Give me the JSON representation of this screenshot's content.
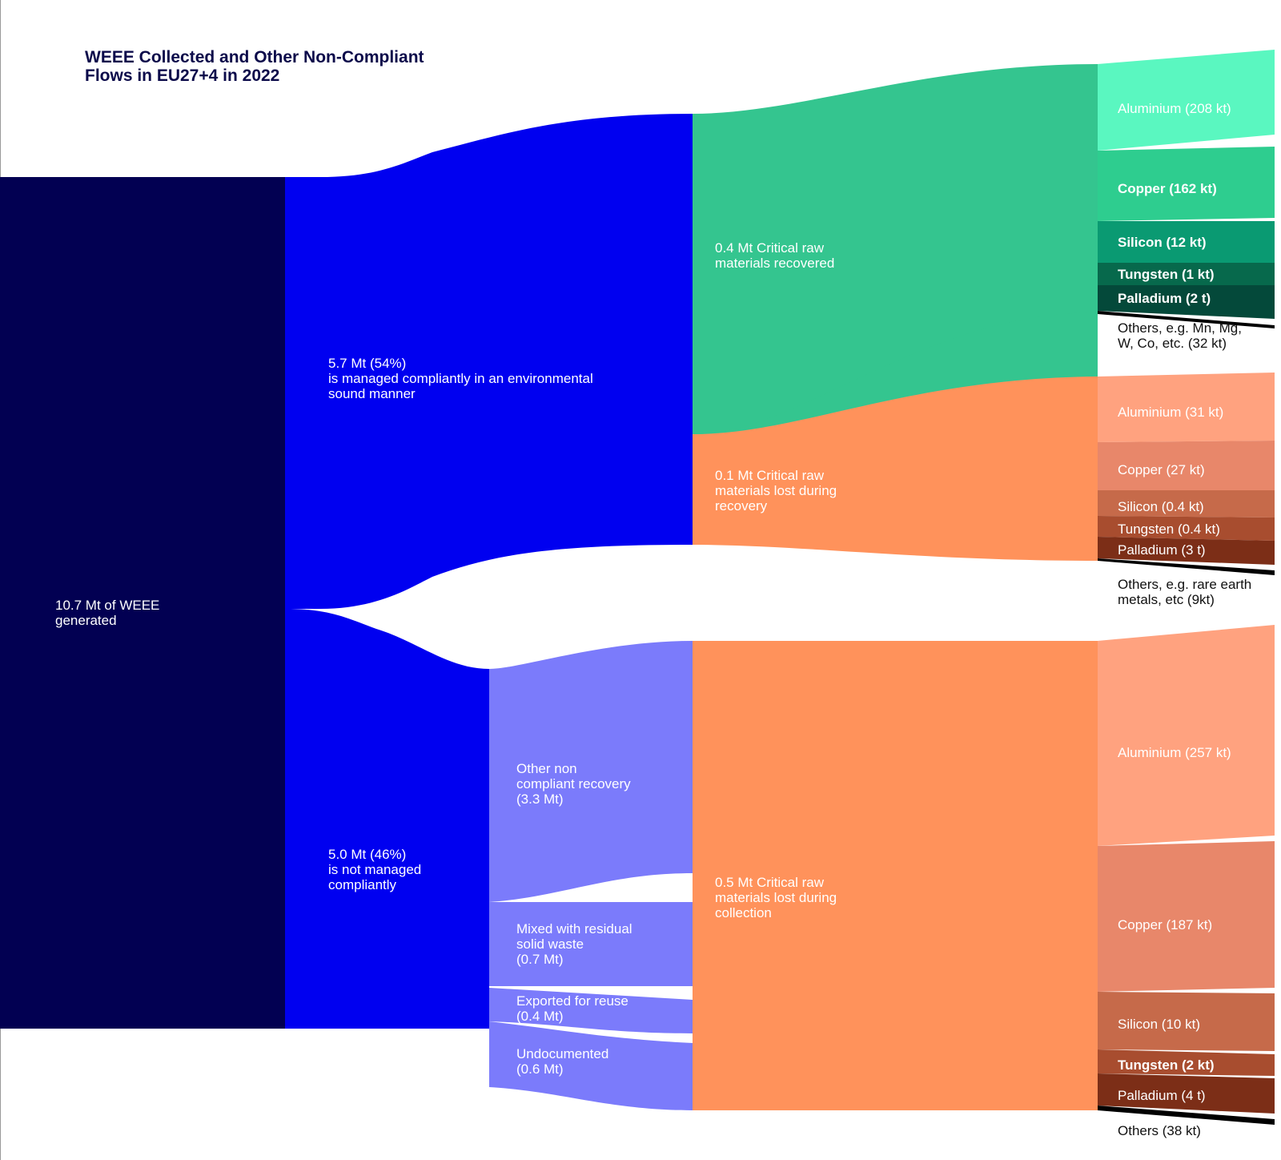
{
  "title": {
    "line1": "WEEE Collected and Other Non-Compliant",
    "line2": "Flows in EU27+4 in 2022"
  },
  "colors": {
    "generated": "#020052",
    "flow_blue": "#0000f0",
    "non_compliant_branch": "#7b7bfb",
    "recovered": "#34c58f",
    "lost": "#ff925b"
  },
  "nodes": {
    "generated": {
      "line1": "10.7 Mt of WEEE",
      "line2": "generated"
    },
    "compliant": {
      "line1": "5.7 Mt (54%)",
      "line2": "is managed compliantly in an environmental",
      "line3": "sound manner"
    },
    "non_compliant": {
      "line1": "5.0 Mt (46%)",
      "line2": "is not managed",
      "line3": "compliantly"
    },
    "other_recovery": {
      "line1": "Other non",
      "line2": "compliant recovery",
      "line3": "(3.3 Mt)"
    },
    "mixed_residual": {
      "line1": "Mixed with residual",
      "line2": "solid waste",
      "line3": "(0.7 Mt)"
    },
    "exported_reuse": {
      "line1": "Exported for reuse",
      "line2": "(0.4 Mt)"
    },
    "undocumented": {
      "line1": "Undocumented",
      "line2": "(0.6 Mt)"
    },
    "crm_recovered": {
      "line1": "0.4 Mt Critical raw",
      "line2": "materials recovered"
    },
    "crm_lost_recovery": {
      "line1": "0.1 Mt Critical raw",
      "line2": "materials lost during",
      "line3": "recovery"
    },
    "crm_lost_collection": {
      "line1": "0.5 Mt Critical raw",
      "line2": "materials lost during",
      "line3": "collection"
    }
  },
  "recovered_materials": [
    {
      "label": "Aluminium (208 kt)",
      "color": "#5af7c0"
    },
    {
      "label": "Copper (162 kt)",
      "color": "#2ecd8f"
    },
    {
      "label": "Silicon (12 kt)",
      "color": "#0a9a72"
    },
    {
      "label": "Tungsten (1 kt)",
      "color": "#07694c"
    },
    {
      "label": "Palladium (2 t)",
      "color": "#04493a"
    },
    {
      "label_line1": "Others, e.g. Mn, Mg,",
      "label_line2": "W, Co, etc. (32 kt)",
      "color": "#000000"
    }
  ],
  "lost_recovery_materials": [
    {
      "label": "Aluminium (31 kt)",
      "color": "#ffa27f"
    },
    {
      "label": "Copper (27 kt)",
      "color": "#e8876a"
    },
    {
      "label": "Silicon (0.4 kt)",
      "color": "#c66a4a"
    },
    {
      "label": "Tungsten (0.4 kt)",
      "color": "#a84d2f"
    },
    {
      "label": "Palladium (3 t)",
      "color": "#7c2e17"
    },
    {
      "label_line1": "Others, e.g. rare earth",
      "label_line2": "metals, etc (9kt)",
      "color": "#000000"
    }
  ],
  "lost_collection_materials": [
    {
      "label": "Aluminium (257 kt)",
      "color": "#ffa27f"
    },
    {
      "label": "Copper (187 kt)",
      "color": "#e8876a"
    },
    {
      "label": "Silicon (10 kt)",
      "color": "#c66a4a"
    },
    {
      "label": "Tungsten (2 kt)",
      "color": "#a84d2f"
    },
    {
      "label": "Palladium (4 t)",
      "color": "#7c2e17"
    },
    {
      "label": "Others (38 kt)",
      "color": "#000000"
    }
  ]
}
